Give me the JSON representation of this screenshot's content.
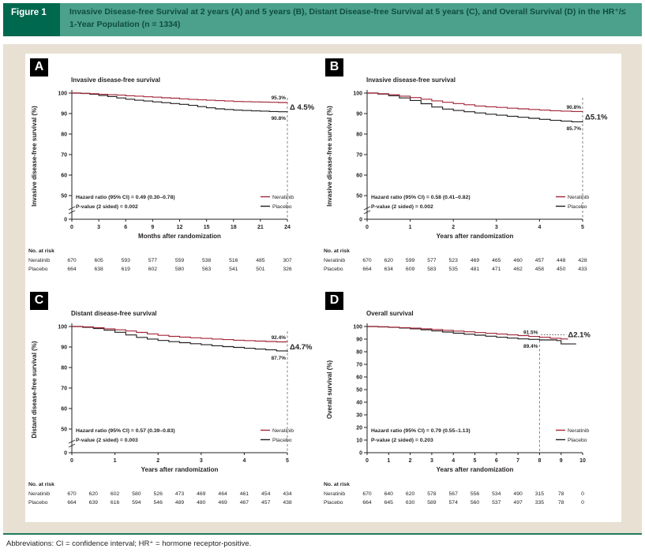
{
  "figure_header": {
    "label": "Figure 1",
    "title": "Invasive Disease-free Survival at 2 years (A) and 5 years (B), Distant Disease-free Survival at 5 years (C), and Overall Survival (D) in the HR⁺/≤ 1-Year Population (n = 1334)"
  },
  "footer": {
    "abbreviations": "Abbreviations: CI = confidence interval; HR⁺ = hormone receptor-positive."
  },
  "colors": {
    "neratinib": "#a32638",
    "placebo": "#231f20",
    "header_teal": "#4ba18c",
    "header_green": "#00684e",
    "beige": "#e8e1d3",
    "bottom_line": "#1f7a5c"
  },
  "chart_data": [
    {
      "panel_label": "A",
      "type": "line",
      "title": "Invasive disease-free survival",
      "ylabel": "Invasive disease-free survival (%)",
      "xlabel": "Months after randomization",
      "xlim": [
        0,
        24
      ],
      "x_ticks": [
        0,
        3,
        6,
        9,
        12,
        15,
        18,
        21,
        24
      ],
      "y_ticks": [
        100,
        90,
        80,
        70,
        60,
        50,
        0
      ],
      "y_break": true,
      "dashed_x": 24,
      "delta_connector": false,
      "end_labels": {
        "neratinib": "95.3%",
        "placebo": "90.8%",
        "delta": "Δ 4.5%"
      },
      "stats": [
        "Hazard ratio (95% CI) = 0.49 (0.30–0.78)",
        "P-value (2 sided) = 0.002"
      ],
      "series": [
        {
          "name": "Neratinib",
          "color": "#a32638",
          "points": [
            [
              0,
              100
            ],
            [
              1,
              99.9
            ],
            [
              2,
              99.7
            ],
            [
              3,
              99.4
            ],
            [
              4,
              99.2
            ],
            [
              5,
              99.0
            ],
            [
              6,
              98.7
            ],
            [
              7,
              98.5
            ],
            [
              8,
              98.2
            ],
            [
              9,
              98.0
            ],
            [
              10,
              97.7
            ],
            [
              11,
              97.5
            ],
            [
              12,
              97.2
            ],
            [
              13,
              96.9
            ],
            [
              14,
              96.7
            ],
            [
              15,
              96.5
            ],
            [
              16,
              96.3
            ],
            [
              17,
              96.1
            ],
            [
              18,
              95.9
            ],
            [
              19,
              95.8
            ],
            [
              20,
              95.7
            ],
            [
              21,
              95.6
            ],
            [
              22,
              95.5
            ],
            [
              23,
              95.4
            ],
            [
              24,
              95.3
            ]
          ]
        },
        {
          "name": "Placebo",
          "color": "#231f20",
          "points": [
            [
              0,
              100
            ],
            [
              1,
              99.8
            ],
            [
              2,
              99.4
            ],
            [
              3,
              98.8
            ],
            [
              4,
              98.3
            ],
            [
              5,
              97.6
            ],
            [
              6,
              97.0
            ],
            [
              7,
              96.5
            ],
            [
              8,
              96.1
            ],
            [
              9,
              95.7
            ],
            [
              10,
              95.3
            ],
            [
              11,
              94.9
            ],
            [
              12,
              94.5
            ],
            [
              13,
              94.0
            ],
            [
              14,
              93.4
            ],
            [
              15,
              92.8
            ],
            [
              16,
              92.3
            ],
            [
              17,
              92.0
            ],
            [
              18,
              91.7
            ],
            [
              19,
              91.5
            ],
            [
              20,
              91.3
            ],
            [
              21,
              91.2
            ],
            [
              22,
              91.0
            ],
            [
              23,
              90.9
            ],
            [
              24,
              90.8
            ]
          ]
        }
      ],
      "risk_table": {
        "header": "No. at risk",
        "x_values": [
          0,
          3,
          6,
          9,
          12,
          15,
          18,
          21,
          24
        ],
        "rows": [
          {
            "label": "Neratinib",
            "values": [
              670,
              605,
              593,
              577,
              559,
              538,
              516,
              485,
              307
            ]
          },
          {
            "label": "Placebo",
            "values": [
              664,
              638,
              619,
              602,
              580,
              563,
              541,
              501,
              326
            ]
          }
        ]
      }
    },
    {
      "panel_label": "B",
      "type": "line",
      "title": "Invasive disease-free survival",
      "ylabel": "Invasive disease-free survival (%)",
      "xlabel": "Years after randomization",
      "xlim": [
        0,
        5
      ],
      "x_ticks": [
        0,
        1,
        2,
        3,
        4,
        5
      ],
      "y_ticks": [
        100,
        90,
        80,
        70,
        60,
        50,
        0
      ],
      "y_break": true,
      "dashed_x": 5,
      "delta_connector": false,
      "end_labels": {
        "neratinib": "90.8%",
        "placebo": "85.7%",
        "delta": "Δ5.1%"
      },
      "stats": [
        "Hazard ratio (95% CI) = 0.58 (0.41–0.82)",
        "P-value (2 sided) = 0.002"
      ],
      "series": [
        {
          "name": "Neratinib",
          "color": "#a32638",
          "points": [
            [
              0,
              100
            ],
            [
              0.25,
              99.7
            ],
            [
              0.5,
              99.2
            ],
            [
              0.75,
              98.5
            ],
            [
              1,
              97.8
            ],
            [
              1.25,
              97.0
            ],
            [
              1.5,
              96.2
            ],
            [
              1.75,
              95.5
            ],
            [
              2,
              94.9
            ],
            [
              2.25,
              94.3
            ],
            [
              2.5,
              93.7
            ],
            [
              2.75,
              93.3
            ],
            [
              3,
              93.0
            ],
            [
              3.25,
              92.6
            ],
            [
              3.5,
              92.3
            ],
            [
              3.75,
              92.0
            ],
            [
              4,
              91.7
            ],
            [
              4.25,
              91.4
            ],
            [
              4.5,
              91.2
            ],
            [
              4.75,
              91.0
            ],
            [
              5,
              90.8
            ]
          ]
        },
        {
          "name": "Placebo",
          "color": "#231f20",
          "points": [
            [
              0,
              100
            ],
            [
              0.25,
              99.5
            ],
            [
              0.5,
              98.7
            ],
            [
              0.75,
              97.6
            ],
            [
              1,
              96.4
            ],
            [
              1.25,
              94.8
            ],
            [
              1.5,
              93.2
            ],
            [
              1.75,
              92.2
            ],
            [
              2,
              91.5
            ],
            [
              2.25,
              90.9
            ],
            [
              2.5,
              90.3
            ],
            [
              2.75,
              89.7
            ],
            [
              3,
              89.2
            ],
            [
              3.25,
              88.7
            ],
            [
              3.5,
              88.2
            ],
            [
              3.75,
              87.7
            ],
            [
              4,
              87.2
            ],
            [
              4.25,
              86.7
            ],
            [
              4.5,
              86.3
            ],
            [
              4.75,
              86.0
            ],
            [
              5,
              85.7
            ]
          ]
        }
      ],
      "risk_table": {
        "header": "No. at risk",
        "x_values": [
          0,
          0.5,
          1,
          1.5,
          2,
          2.5,
          3,
          3.5,
          4,
          4.5,
          5
        ],
        "rows": [
          {
            "label": "Neratinib",
            "values": [
              670,
              620,
              599,
              577,
              523,
              469,
              465,
              460,
              457,
              448,
              428
            ]
          },
          {
            "label": "Placebo",
            "values": [
              664,
              634,
              609,
              583,
              535,
              481,
              471,
              462,
              458,
              450,
              433
            ]
          }
        ]
      }
    },
    {
      "panel_label": "C",
      "type": "line",
      "title": "Distant disease-free survival",
      "ylabel": "Distant disease-free survival (%)",
      "xlabel": "Years after randomization",
      "xlim": [
        0,
        5
      ],
      "x_ticks": [
        0,
        1,
        2,
        3,
        4,
        5
      ],
      "y_ticks": [
        100,
        90,
        80,
        70,
        60,
        50,
        0
      ],
      "y_break": true,
      "dashed_x": 5,
      "delta_connector": false,
      "end_labels": {
        "neratinib": "92.4%",
        "placebo": "87.7%",
        "delta": "Δ4.7%"
      },
      "stats": [
        "Hazard ratio (95% CI) = 0.57 (0.39–0.83)",
        "P-value (2 sided) = 0.003"
      ],
      "series": [
        {
          "name": "Neratinib",
          "color": "#a32638",
          "points": [
            [
              0,
              100
            ],
            [
              0.25,
              99.8
            ],
            [
              0.5,
              99.4
            ],
            [
              0.75,
              98.9
            ],
            [
              1,
              98.4
            ],
            [
              1.25,
              97.8
            ],
            [
              1.5,
              97.1
            ],
            [
              1.75,
              96.4
            ],
            [
              2,
              95.7
            ],
            [
              2.25,
              95.2
            ],
            [
              2.5,
              94.8
            ],
            [
              2.75,
              94.5
            ],
            [
              3,
              94.2
            ],
            [
              3.25,
              93.9
            ],
            [
              3.5,
              93.6
            ],
            [
              3.75,
              93.3
            ],
            [
              4,
              93.1
            ],
            [
              4.25,
              92.9
            ],
            [
              4.5,
              92.7
            ],
            [
              4.75,
              92.5
            ],
            [
              5,
              92.4
            ]
          ]
        },
        {
          "name": "Placebo",
          "color": "#231f20",
          "points": [
            [
              0,
              100
            ],
            [
              0.25,
              99.6
            ],
            [
              0.5,
              99.0
            ],
            [
              0.75,
              98.2
            ],
            [
              1,
              97.2
            ],
            [
              1.25,
              95.9
            ],
            [
              1.5,
              94.7
            ],
            [
              1.75,
              93.9
            ],
            [
              2,
              93.2
            ],
            [
              2.25,
              92.6
            ],
            [
              2.5,
              92.1
            ],
            [
              2.75,
              91.6
            ],
            [
              3,
              91.1
            ],
            [
              3.25,
              90.6
            ],
            [
              3.5,
              90.2
            ],
            [
              3.75,
              89.8
            ],
            [
              4,
              89.4
            ],
            [
              4.25,
              89.0
            ],
            [
              4.5,
              88.6
            ],
            [
              4.75,
              88.1
            ],
            [
              5,
              87.7
            ]
          ]
        }
      ],
      "risk_table": {
        "header": "No. at risk",
        "x_values": [
          0,
          0.5,
          1,
          1.5,
          2,
          2.5,
          3,
          3.5,
          4,
          4.5,
          5
        ],
        "rows": [
          {
            "label": "Neratinib",
            "values": [
              670,
              620,
              602,
              580,
              526,
              473,
              469,
              464,
              461,
              454,
              434
            ]
          },
          {
            "label": "Placebo",
            "values": [
              664,
              639,
              616,
              594,
              546,
              489,
              480,
              469,
              467,
              457,
              438
            ]
          }
        ]
      }
    },
    {
      "panel_label": "D",
      "type": "line",
      "title": "Overall survival",
      "ylabel": "Overall survival (%)",
      "xlabel": "Years after randomization",
      "xlim": [
        0,
        10
      ],
      "x_ticks": [
        0,
        1,
        2,
        3,
        4,
        5,
        6,
        7,
        8,
        9,
        10
      ],
      "y_ticks": [
        100,
        90,
        80,
        70,
        60,
        50,
        40,
        30,
        20,
        10,
        0
      ],
      "y_break": false,
      "dashed_x": 8,
      "delta_connector": true,
      "end_labels": {
        "neratinib": "91.5%",
        "placebo": "89.4%",
        "delta": "Δ2.1%"
      },
      "stats": [
        "Hazard ratio (95% CI) = 0.79 (0.55–1.13)",
        "P-value (2 sided) = 0.203"
      ],
      "series": [
        {
          "name": "Neratinib",
          "color": "#a32638",
          "points": [
            [
              0,
              100
            ],
            [
              0.5,
              99.8
            ],
            [
              1,
              99.5
            ],
            [
              1.5,
              99.1
            ],
            [
              2,
              98.7
            ],
            [
              2.5,
              98.2
            ],
            [
              3,
              97.6
            ],
            [
              3.5,
              97.0
            ],
            [
              4,
              96.4
            ],
            [
              4.5,
              95.8
            ],
            [
              5,
              95.2
            ],
            [
              5.5,
              94.6
            ],
            [
              6,
              94.0
            ],
            [
              6.5,
              93.4
            ],
            [
              7,
              92.8
            ],
            [
              7.5,
              92.1
            ],
            [
              8,
              91.5
            ],
            [
              8.5,
              90.7
            ],
            [
              9,
              90.1
            ],
            [
              9.3,
              89.7
            ]
          ]
        },
        {
          "name": "Placebo",
          "color": "#231f20",
          "points": [
            [
              0,
              100
            ],
            [
              0.5,
              99.7
            ],
            [
              1,
              99.3
            ],
            [
              1.5,
              98.8
            ],
            [
              2,
              98.2
            ],
            [
              2.5,
              97.4
            ],
            [
              3,
              96.5
            ],
            [
              3.5,
              95.6
            ],
            [
              4,
              94.7
            ],
            [
              4.5,
              93.9
            ],
            [
              5,
              93.1
            ],
            [
              5.5,
              92.3
            ],
            [
              6,
              91.5
            ],
            [
              6.5,
              90.8
            ],
            [
              7,
              90.2
            ],
            [
              7.5,
              89.8
            ],
            [
              8,
              89.4
            ],
            [
              8.8,
              88.9
            ],
            [
              9,
              86.2
            ],
            [
              9.7,
              86.2
            ]
          ]
        }
      ],
      "risk_table": {
        "header": "No. at risk",
        "x_values": [
          0,
          1,
          2,
          3,
          4,
          5,
          6,
          7,
          8,
          9,
          10
        ],
        "rows": [
          {
            "label": "Neratinib",
            "values": [
              670,
              640,
              620,
              578,
              567,
              556,
              534,
              490,
              315,
              78,
              0
            ]
          },
          {
            "label": "Placebo",
            "values": [
              664,
              645,
              630,
              589,
              574,
              560,
              537,
              497,
              335,
              78,
              0
            ]
          }
        ]
      }
    }
  ]
}
